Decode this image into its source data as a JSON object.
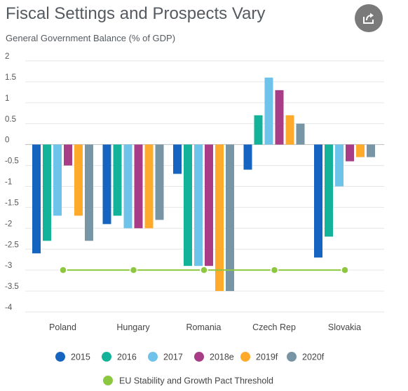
{
  "header": {
    "title": "Fiscal Settings and Prospects Vary",
    "subtitle": "General Government Balance (% of GDP)",
    "share_icon": "share-icon"
  },
  "chart_data": {
    "type": "bar",
    "title": "Fiscal Settings and Prospects Vary",
    "ylabel": "General Government Balance (% of GDP)",
    "ylim": [
      -4,
      2
    ],
    "yticks": [
      "2",
      "1.5",
      "1",
      "0.5",
      "0",
      "-0.5",
      "-1",
      "-1.5",
      "-2",
      "-2.5",
      "-3",
      "-3.5",
      "-4"
    ],
    "grid": true,
    "legend_position": "bottom",
    "categories": [
      "Poland",
      "Hungary",
      "Romania",
      "Czech Rep",
      "Slovakia"
    ],
    "series": [
      {
        "name": "2015",
        "color": "#1565c0",
        "values": [
          -2.6,
          -1.9,
          -0.7,
          -0.6,
          -2.7
        ]
      },
      {
        "name": "2016",
        "color": "#13b39a",
        "values": [
          -2.3,
          -1.7,
          -2.9,
          0.7,
          -2.2
        ]
      },
      {
        "name": "2017",
        "color": "#6ec3ea",
        "values": [
          -1.7,
          -2.0,
          -2.9,
          1.6,
          -1.0
        ]
      },
      {
        "name": "2018e",
        "color": "#a83c86",
        "values": [
          -0.5,
          -2.0,
          -2.9,
          1.3,
          -0.4
        ]
      },
      {
        "name": "2019f",
        "color": "#ffaa2b",
        "values": [
          -1.7,
          -2.0,
          -3.5,
          0.7,
          -0.3
        ]
      },
      {
        "name": "2020f",
        "color": "#7895a5",
        "values": [
          -2.3,
          -1.8,
          -3.5,
          0.5,
          -0.3
        ]
      }
    ],
    "threshold": {
      "name": "EU Stability and Growth Pact Threshold",
      "value": -3,
      "color": "#8dc63f"
    }
  }
}
